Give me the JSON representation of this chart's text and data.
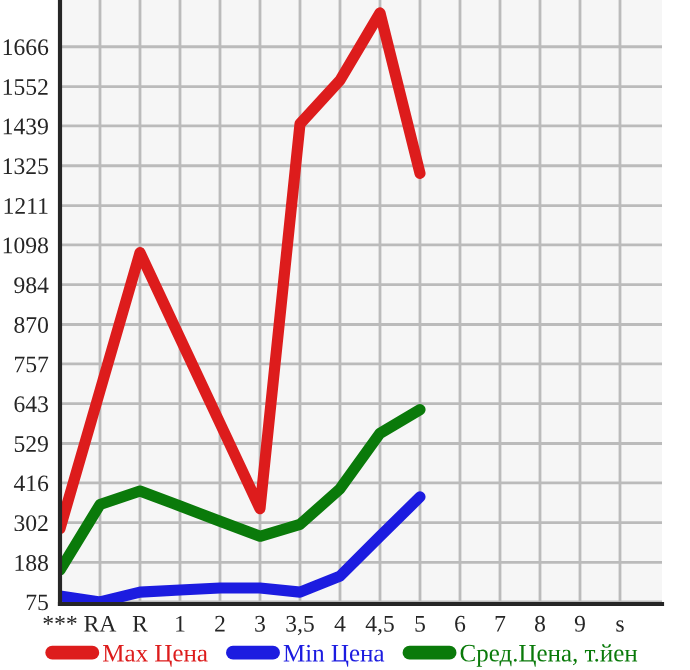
{
  "chart_data": {
    "type": "line",
    "categories": [
      "***",
      "RA",
      "R",
      "1",
      "2",
      "3",
      "3,5",
      "4",
      "4,5",
      "5",
      "6",
      "7",
      "8",
      "9",
      "s"
    ],
    "series": [
      {
        "name": "Max Цена",
        "color": "#dd1c1c",
        "values": [
          285,
          680,
          1076,
          831,
          587,
          342,
          1445,
          1570,
          1763,
          1303,
          null,
          null,
          null,
          null,
          null
        ]
      },
      {
        "name": "Min Цена",
        "color": "#1c1ce0",
        "values": [
          92,
          75,
          103,
          109,
          115,
          115,
          103,
          149,
          263,
          376,
          null,
          null,
          null,
          null,
          null
        ]
      },
      {
        "name": "Сред.Цена, т.йен",
        "color": "#0a7a0a",
        "values": [
          166,
          354,
          393,
          350,
          306,
          263,
          297,
          399,
          558,
          626,
          null,
          null,
          null,
          null,
          null
        ]
      }
    ],
    "ylim": [
      69,
      1800
    ],
    "yticks": [
      75,
      188,
      302,
      416,
      529,
      643,
      757,
      870,
      984,
      1098,
      1211,
      1325,
      1439,
      1552,
      1666
    ],
    "grid": true,
    "legend": "bottom",
    "marker": "none",
    "line_style": "solid"
  }
}
